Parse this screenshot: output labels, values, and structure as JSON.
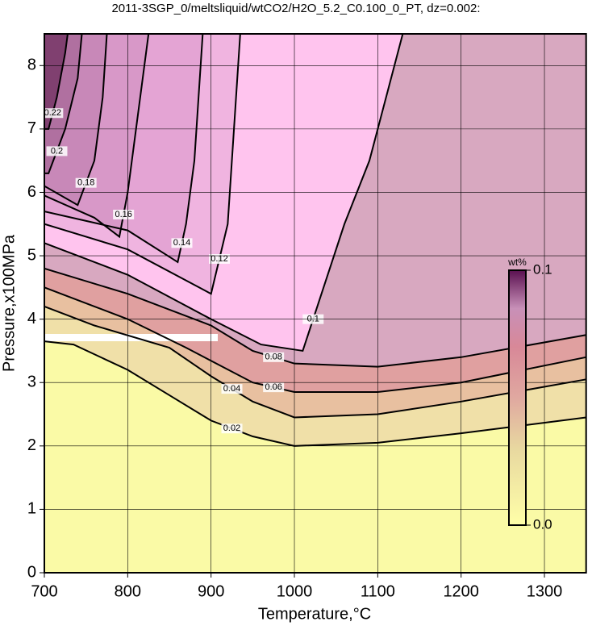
{
  "chart_data": {
    "type": "contour",
    "title": "2011-3SGP_0/meltsliquid/wtCO2/H2O_5.2_C0.100_0_PT, dz=0.002:",
    "x_label": "Temperature,°C",
    "y_label": "Pressure,x100MPa",
    "xlim": [
      700,
      1350
    ],
    "ylim": [
      0,
      8.5
    ],
    "xticks": [
      700,
      800,
      900,
      1000,
      1100,
      1200,
      1300
    ],
    "yticks": [
      0,
      1,
      2,
      3,
      4,
      5,
      6,
      7,
      8
    ],
    "grid": true,
    "background": "#fafaa6",
    "colorbar": {
      "title": "wt%",
      "ticks": [
        {
          "value": 0,
          "label": "0.0"
        },
        {
          "value": 0.1,
          "label": "0.1"
        }
      ],
      "colorscale": [
        [
          0,
          "#ffffa8"
        ],
        [
          0.03,
          "#e8d8a0"
        ],
        [
          0.05,
          "#e0a8a0"
        ],
        [
          0.07,
          "#d88898"
        ],
        [
          0.085,
          "#c890b8"
        ],
        [
          0.1,
          "#5a1050"
        ]
      ]
    },
    "series": [
      {
        "name": "0.02",
        "level": 0.02,
        "color": "#f0e0a8",
        "x": [
          700,
          735,
          800,
          850,
          900,
          950,
          1000,
          1100,
          1200,
          1350
        ],
        "y": [
          3.65,
          3.6,
          3.2,
          2.8,
          2.4,
          2.15,
          2.0,
          2.05,
          2.2,
          2.45
        ]
      },
      {
        "name": "0.04",
        "level": 0.04,
        "color": "#e8c0a0",
        "x": [
          700,
          760,
          850,
          900,
          950,
          1000,
          1100,
          1200,
          1350
        ],
        "y": [
          4.2,
          3.9,
          3.55,
          3.1,
          2.7,
          2.45,
          2.5,
          2.7,
          3.05
        ]
      },
      {
        "name": "0.06",
        "level": 0.06,
        "color": "#e0a0a0",
        "x": [
          700,
          800,
          870,
          950,
          1000,
          1100,
          1200,
          1350
        ],
        "y": [
          4.5,
          4.0,
          3.55,
          3.0,
          2.85,
          2.85,
          3.0,
          3.4
        ]
      },
      {
        "name": "0.08",
        "level": 0.08,
        "color": "#d8a8c0",
        "x": [
          700,
          800,
          900,
          950,
          1000,
          1100,
          1200,
          1350
        ],
        "y": [
          4.8,
          4.4,
          3.9,
          3.5,
          3.3,
          3.25,
          3.4,
          3.75
        ]
      },
      {
        "name": "0.1",
        "level": 0.1,
        "color": "#ffc4ee",
        "x": [
          700,
          800,
          900,
          960,
          1010,
          1035,
          1060,
          1090,
          1110,
          1130
        ],
        "y": [
          5.2,
          4.7,
          4.0,
          3.6,
          3.5,
          4.5,
          5.5,
          6.5,
          7.5,
          8.5
        ]
      },
      {
        "name": "0.12",
        "level": 0.12,
        "color": "#f0b4e0",
        "x": [
          700,
          800,
          900,
          920,
          925,
          930,
          935
        ],
        "y": [
          5.5,
          5.1,
          4.4,
          5.5,
          6.5,
          7.5,
          8.5
        ]
      },
      {
        "name": "0.14",
        "level": 0.14,
        "color": "#e4a4d4",
        "x": [
          700,
          800,
          860,
          870,
          880,
          885,
          890
        ],
        "y": [
          5.7,
          5.4,
          4.9,
          5.5,
          6.5,
          7.5,
          8.5
        ]
      },
      {
        "name": "0.16",
        "level": 0.16,
        "color": "#d898c8",
        "x": [
          700,
          760,
          790,
          800,
          815,
          825
        ],
        "y": [
          5.95,
          5.6,
          5.3,
          6.0,
          7.5,
          8.5
        ]
      },
      {
        "name": "0.18",
        "level": 0.18,
        "color": "#c888b8",
        "x": [
          700,
          740,
          760,
          770,
          775
        ],
        "y": [
          6.1,
          5.8,
          6.5,
          7.5,
          8.5
        ]
      },
      {
        "name": "0.2",
        "level": 0.2,
        "color": "#b070a0",
        "x": [
          700,
          705,
          725,
          740,
          745
        ],
        "y": [
          6.3,
          6.3,
          7.0,
          7.8,
          8.5
        ]
      },
      {
        "name": "0.22",
        "level": 0.22,
        "color": "#804070",
        "x": [
          700,
          705,
          715,
          725,
          728
        ],
        "y": [
          7.0,
          7.0,
          7.5,
          8.2,
          8.5
        ]
      }
    ]
  }
}
